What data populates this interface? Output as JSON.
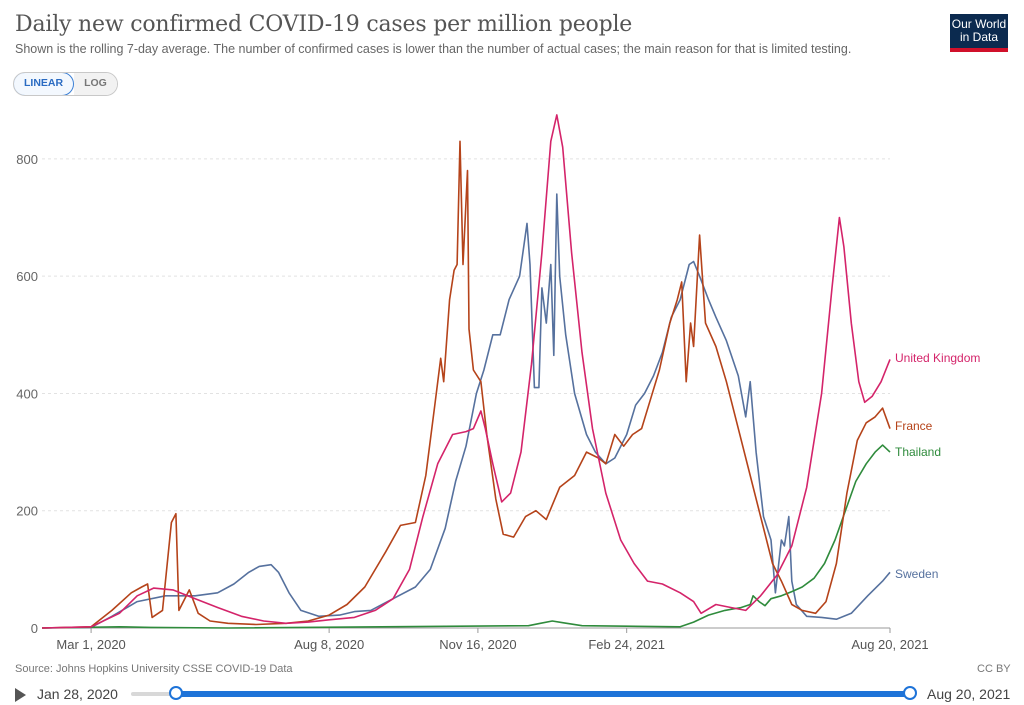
{
  "header": {
    "title": "Daily new confirmed COVID-19 cases per million people",
    "subtitle": "Shown is the rolling 7-day average. The number of confirmed cases is lower than the number of actual cases; the main reason for that is limited testing.",
    "logo_line1": "Our World",
    "logo_line2": "in Data"
  },
  "scale_toggle": {
    "linear": "LINEAR",
    "log": "LOG",
    "selected": "LINEAR"
  },
  "footer": {
    "source": "Source: Johns Hopkins University CSSE COVID-19 Data",
    "license": "CC BY"
  },
  "timeline": {
    "start": "Jan 28, 2020",
    "end": "Aug 20, 2021"
  },
  "colors": {
    "United Kingdom": "#d4246a",
    "France": "#b5431a",
    "Thailand": "#2f8b3c",
    "Sweden": "#56719e",
    "grid": "#e2e2e2",
    "slider": "#1e73d8"
  },
  "chart_data": {
    "type": "line",
    "yscale": "linear",
    "xlim": [
      "2020-01-28",
      "2021-08-20"
    ],
    "ylim": [
      0,
      880
    ],
    "yticks": [
      0,
      200,
      400,
      600,
      800
    ],
    "xticks": [
      {
        "date": "2020-03-01",
        "label": "Mar 1, 2020"
      },
      {
        "date": "2020-08-08",
        "label": "Aug 8, 2020"
      },
      {
        "date": "2020-11-16",
        "label": "Nov 16, 2020"
      },
      {
        "date": "2021-02-24",
        "label": "Feb 24, 2021"
      },
      {
        "date": "2021-08-20",
        "label": "Aug 20, 2021"
      }
    ],
    "grid": "horizontal dashed",
    "legend": "labels at line ends (right)",
    "series": [
      {
        "name": "United Kingdom",
        "points": [
          [
            "2020-01-28",
            0
          ],
          [
            "2020-03-01",
            2
          ],
          [
            "2020-03-20",
            25
          ],
          [
            "2020-04-01",
            55
          ],
          [
            "2020-04-12",
            68
          ],
          [
            "2020-04-25",
            65
          ],
          [
            "2020-05-10",
            50
          ],
          [
            "2020-05-25",
            35
          ],
          [
            "2020-06-10",
            20
          ],
          [
            "2020-06-25",
            12
          ],
          [
            "2020-07-10",
            8
          ],
          [
            "2020-07-25",
            10
          ],
          [
            "2020-08-08",
            14
          ],
          [
            "2020-08-25",
            18
          ],
          [
            "2020-09-08",
            30
          ],
          [
            "2020-09-20",
            50
          ],
          [
            "2020-10-01",
            100
          ],
          [
            "2020-10-10",
            190
          ],
          [
            "2020-10-20",
            280
          ],
          [
            "2020-10-30",
            330
          ],
          [
            "2020-11-08",
            335
          ],
          [
            "2020-11-13",
            340
          ],
          [
            "2020-11-18",
            370
          ],
          [
            "2020-11-21",
            340
          ],
          [
            "2020-11-26",
            280
          ],
          [
            "2020-12-02",
            215
          ],
          [
            "2020-12-08",
            230
          ],
          [
            "2020-12-15",
            300
          ],
          [
            "2020-12-22",
            450
          ],
          [
            "2020-12-29",
            640
          ],
          [
            "2021-01-04",
            830
          ],
          [
            "2021-01-08",
            875
          ],
          [
            "2021-01-12",
            820
          ],
          [
            "2021-01-18",
            640
          ],
          [
            "2021-01-25",
            470
          ],
          [
            "2021-02-01",
            340
          ],
          [
            "2021-02-10",
            230
          ],
          [
            "2021-02-20",
            150
          ],
          [
            "2021-03-01",
            110
          ],
          [
            "2021-03-10",
            80
          ],
          [
            "2021-03-20",
            75
          ],
          [
            "2021-04-01",
            60
          ],
          [
            "2021-04-10",
            45
          ],
          [
            "2021-04-15",
            25
          ],
          [
            "2021-04-25",
            40
          ],
          [
            "2021-05-05",
            35
          ],
          [
            "2021-05-15",
            30
          ],
          [
            "2021-05-25",
            55
          ],
          [
            "2021-06-05",
            90
          ],
          [
            "2021-06-15",
            140
          ],
          [
            "2021-06-25",
            240
          ],
          [
            "2021-07-05",
            400
          ],
          [
            "2021-07-12",
            580
          ],
          [
            "2021-07-17",
            700
          ],
          [
            "2021-07-20",
            650
          ],
          [
            "2021-07-25",
            520
          ],
          [
            "2021-07-30",
            420
          ],
          [
            "2021-08-03",
            385
          ],
          [
            "2021-08-08",
            395
          ],
          [
            "2021-08-14",
            420
          ],
          [
            "2021-08-20",
            458
          ]
        ]
      },
      {
        "name": "France",
        "points": [
          [
            "2020-01-28",
            0
          ],
          [
            "2020-03-01",
            2
          ],
          [
            "2020-03-15",
            30
          ],
          [
            "2020-03-28",
            60
          ],
          [
            "2020-04-04",
            70
          ],
          [
            "2020-04-08",
            75
          ],
          [
            "2020-04-11",
            18
          ],
          [
            "2020-04-18",
            30
          ],
          [
            "2020-04-24",
            180
          ],
          [
            "2020-04-27",
            195
          ],
          [
            "2020-04-29",
            30
          ],
          [
            "2020-05-06",
            65
          ],
          [
            "2020-05-12",
            25
          ],
          [
            "2020-05-20",
            12
          ],
          [
            "2020-06-01",
            8
          ],
          [
            "2020-06-20",
            6
          ],
          [
            "2020-07-10",
            8
          ],
          [
            "2020-07-25",
            12
          ],
          [
            "2020-08-08",
            22
          ],
          [
            "2020-08-20",
            40
          ],
          [
            "2020-09-01",
            70
          ],
          [
            "2020-09-15",
            130
          ],
          [
            "2020-09-25",
            175
          ],
          [
            "2020-10-05",
            180
          ],
          [
            "2020-10-12",
            260
          ],
          [
            "2020-10-18",
            380
          ],
          [
            "2020-10-22",
            460
          ],
          [
            "2020-10-24",
            420
          ],
          [
            "2020-10-28",
            560
          ],
          [
            "2020-10-31",
            610
          ],
          [
            "2020-11-02",
            620
          ],
          [
            "2020-11-04",
            830
          ],
          [
            "2020-11-06",
            620
          ],
          [
            "2020-11-09",
            780
          ],
          [
            "2020-11-10",
            510
          ],
          [
            "2020-11-13",
            440
          ],
          [
            "2020-11-18",
            420
          ],
          [
            "2020-11-22",
            330
          ],
          [
            "2020-11-28",
            220
          ],
          [
            "2020-12-03",
            160
          ],
          [
            "2020-12-10",
            155
          ],
          [
            "2020-12-18",
            190
          ],
          [
            "2020-12-25",
            200
          ],
          [
            "2021-01-01",
            185
          ],
          [
            "2021-01-10",
            240
          ],
          [
            "2021-01-20",
            260
          ],
          [
            "2021-01-28",
            300
          ],
          [
            "2021-02-05",
            290
          ],
          [
            "2021-02-10",
            280
          ],
          [
            "2021-02-16",
            330
          ],
          [
            "2021-02-22",
            310
          ],
          [
            "2021-02-28",
            330
          ],
          [
            "2021-03-06",
            340
          ],
          [
            "2021-03-12",
            390
          ],
          [
            "2021-03-18",
            440
          ],
          [
            "2021-03-25",
            520
          ],
          [
            "2021-03-30",
            560
          ],
          [
            "2021-04-02",
            590
          ],
          [
            "2021-04-05",
            420
          ],
          [
            "2021-04-08",
            520
          ],
          [
            "2021-04-10",
            480
          ],
          [
            "2021-04-14",
            670
          ],
          [
            "2021-04-18",
            520
          ],
          [
            "2021-04-25",
            480
          ],
          [
            "2021-05-02",
            420
          ],
          [
            "2021-05-10",
            340
          ],
          [
            "2021-05-18",
            260
          ],
          [
            "2021-05-26",
            180
          ],
          [
            "2021-06-02",
            110
          ],
          [
            "2021-06-08",
            80
          ],
          [
            "2021-06-15",
            40
          ],
          [
            "2021-06-22",
            30
          ],
          [
            "2021-07-01",
            25
          ],
          [
            "2021-07-08",
            45
          ],
          [
            "2021-07-15",
            110
          ],
          [
            "2021-07-22",
            230
          ],
          [
            "2021-07-29",
            320
          ],
          [
            "2021-08-04",
            350
          ],
          [
            "2021-08-10",
            360
          ],
          [
            "2021-08-15",
            375
          ],
          [
            "2021-08-20",
            340
          ]
        ]
      },
      {
        "name": "Thailand",
        "points": [
          [
            "2020-01-28",
            0
          ],
          [
            "2020-03-20",
            2
          ],
          [
            "2020-04-10",
            1
          ],
          [
            "2020-06-01",
            0
          ],
          [
            "2020-12-20",
            4
          ],
          [
            "2020-12-28",
            8
          ],
          [
            "2021-01-05",
            12
          ],
          [
            "2021-01-12",
            9
          ],
          [
            "2021-01-25",
            4
          ],
          [
            "2021-02-24",
            3
          ],
          [
            "2021-04-01",
            2
          ],
          [
            "2021-04-10",
            10
          ],
          [
            "2021-04-20",
            22
          ],
          [
            "2021-05-01",
            30
          ],
          [
            "2021-05-12",
            35
          ],
          [
            "2021-05-18",
            40
          ],
          [
            "2021-05-20",
            55
          ],
          [
            "2021-05-24",
            45
          ],
          [
            "2021-05-28",
            38
          ],
          [
            "2021-06-01",
            50
          ],
          [
            "2021-06-08",
            55
          ],
          [
            "2021-06-15",
            62
          ],
          [
            "2021-06-22",
            70
          ],
          [
            "2021-06-30",
            85
          ],
          [
            "2021-07-07",
            110
          ],
          [
            "2021-07-14",
            150
          ],
          [
            "2021-07-21",
            200
          ],
          [
            "2021-07-28",
            250
          ],
          [
            "2021-08-04",
            280
          ],
          [
            "2021-08-10",
            300
          ],
          [
            "2021-08-15",
            312
          ],
          [
            "2021-08-20",
            300
          ]
        ]
      },
      {
        "name": "Sweden",
        "points": [
          [
            "2020-01-28",
            0
          ],
          [
            "2020-03-01",
            1
          ],
          [
            "2020-03-15",
            20
          ],
          [
            "2020-04-01",
            45
          ],
          [
            "2020-04-20",
            55
          ],
          [
            "2020-05-10",
            55
          ],
          [
            "2020-05-25",
            60
          ],
          [
            "2020-06-05",
            75
          ],
          [
            "2020-06-15",
            95
          ],
          [
            "2020-06-22",
            105
          ],
          [
            "2020-06-30",
            108
          ],
          [
            "2020-07-05",
            95
          ],
          [
            "2020-07-12",
            60
          ],
          [
            "2020-07-20",
            30
          ],
          [
            "2020-08-01",
            20
          ],
          [
            "2020-08-15",
            22
          ],
          [
            "2020-08-25",
            28
          ],
          [
            "2020-09-05",
            30
          ],
          [
            "2020-09-20",
            50
          ],
          [
            "2020-10-05",
            70
          ],
          [
            "2020-10-15",
            100
          ],
          [
            "2020-10-25",
            170
          ],
          [
            "2020-11-01",
            250
          ],
          [
            "2020-11-08",
            310
          ],
          [
            "2020-11-15",
            400
          ],
          [
            "2020-11-20",
            440
          ],
          [
            "2020-11-26",
            500
          ],
          [
            "2020-12-01",
            500
          ],
          [
            "2020-12-07",
            560
          ],
          [
            "2020-12-14",
            600
          ],
          [
            "2020-12-19",
            690
          ],
          [
            "2020-12-21",
            620
          ],
          [
            "2020-12-24",
            410
          ],
          [
            "2020-12-27",
            410
          ],
          [
            "2020-12-29",
            580
          ],
          [
            "2021-01-01",
            520
          ],
          [
            "2021-01-04",
            620
          ],
          [
            "2021-01-06",
            465
          ],
          [
            "2021-01-08",
            740
          ],
          [
            "2021-01-10",
            600
          ],
          [
            "2021-01-14",
            500
          ],
          [
            "2021-01-20",
            400
          ],
          [
            "2021-01-28",
            330
          ],
          [
            "2021-02-03",
            300
          ],
          [
            "2021-02-10",
            280
          ],
          [
            "2021-02-16",
            290
          ],
          [
            "2021-02-24",
            330
          ],
          [
            "2021-03-02",
            380
          ],
          [
            "2021-03-08",
            400
          ],
          [
            "2021-03-14",
            430
          ],
          [
            "2021-03-20",
            470
          ],
          [
            "2021-03-26",
            530
          ],
          [
            "2021-04-01",
            560
          ],
          [
            "2021-04-07",
            620
          ],
          [
            "2021-04-10",
            625
          ],
          [
            "2021-04-14",
            600
          ],
          [
            "2021-04-20",
            560
          ],
          [
            "2021-04-25",
            530
          ],
          [
            "2021-05-02",
            490
          ],
          [
            "2021-05-10",
            430
          ],
          [
            "2021-05-15",
            360
          ],
          [
            "2021-05-18",
            420
          ],
          [
            "2021-05-22",
            300
          ],
          [
            "2021-05-27",
            190
          ],
          [
            "2021-06-01",
            150
          ],
          [
            "2021-06-04",
            60
          ],
          [
            "2021-06-08",
            150
          ],
          [
            "2021-06-10",
            140
          ],
          [
            "2021-06-13",
            190
          ],
          [
            "2021-06-15",
            80
          ],
          [
            "2021-06-18",
            40
          ],
          [
            "2021-06-25",
            20
          ],
          [
            "2021-07-05",
            18
          ],
          [
            "2021-07-15",
            15
          ],
          [
            "2021-07-25",
            25
          ],
          [
            "2021-08-05",
            55
          ],
          [
            "2021-08-15",
            80
          ],
          [
            "2021-08-20",
            95
          ]
        ]
      }
    ]
  }
}
